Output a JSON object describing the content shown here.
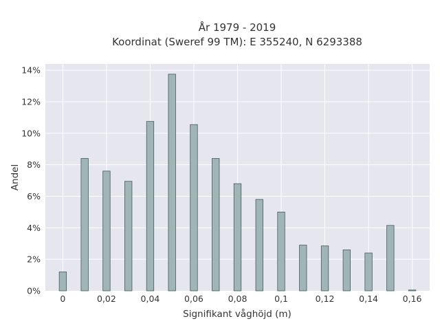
{
  "chart_data": {
    "type": "bar",
    "title_lines": [
      "År 1979 - 2019",
      "Koordinat (Sweref 99 TM): E 355240, N 6293388"
    ],
    "xlabel": "Signifikant våghöjd (m)",
    "ylabel": "Andel",
    "x": [
      0,
      0.01,
      0.02,
      0.03,
      0.04,
      0.05,
      0.06,
      0.07,
      0.08,
      0.09,
      0.1,
      0.11,
      0.12,
      0.13,
      0.14,
      0.15,
      0.16
    ],
    "values": [
      1.2,
      8.4,
      7.6,
      6.95,
      10.75,
      13.75,
      10.55,
      8.4,
      6.8,
      5.8,
      5.0,
      2.9,
      2.85,
      2.6,
      2.4,
      4.15,
      0.05
    ],
    "xlim": [
      -0.008,
      0.168
    ],
    "ylim": [
      0,
      14.4
    ],
    "x_ticks": [
      {
        "value": 0,
        "label": "0"
      },
      {
        "value": 0.02,
        "label": "0,02"
      },
      {
        "value": 0.04,
        "label": "0,04"
      },
      {
        "value": 0.06,
        "label": "0,06"
      },
      {
        "value": 0.08,
        "label": "0,08"
      },
      {
        "value": 0.1,
        "label": "0,1"
      },
      {
        "value": 0.12,
        "label": "0,12"
      },
      {
        "value": 0.14,
        "label": "0,14"
      },
      {
        "value": 0.16,
        "label": "0,16"
      }
    ],
    "y_ticks": [
      {
        "value": 0,
        "label": "0%"
      },
      {
        "value": 2,
        "label": "2%"
      },
      {
        "value": 4,
        "label": "4%"
      },
      {
        "value": 6,
        "label": "6%"
      },
      {
        "value": 8,
        "label": "8%"
      },
      {
        "value": 10,
        "label": "10%"
      },
      {
        "value": 12,
        "label": "12%"
      },
      {
        "value": 14,
        "label": "14%"
      }
    ],
    "grid": true,
    "colors": {
      "bar_fill": "#9fb5b6",
      "bar_stroke": "#3f5a5a",
      "plot_bg": "#e5e6ee",
      "grid": "#ffffff"
    }
  }
}
